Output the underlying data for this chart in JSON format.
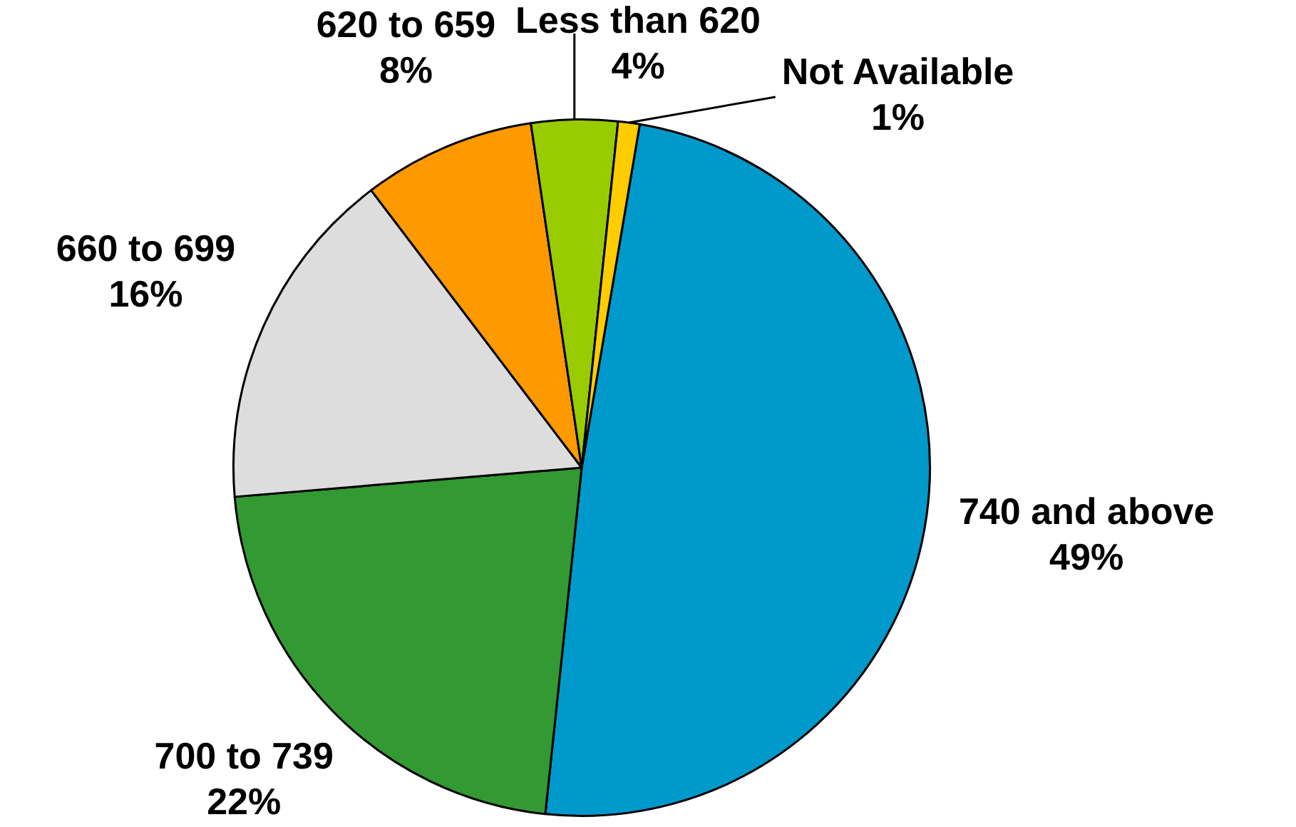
{
  "chart_data": {
    "type": "pie",
    "categories": [
      "740 and above",
      "700 to 739",
      "660 to 699",
      "620 to 659",
      "Less than 620",
      "Not Available"
    ],
    "values": [
      49,
      22,
      16,
      8,
      4,
      1
    ],
    "colors": [
      "#0099cc",
      "#339933",
      "#dddddd",
      "#ff9900",
      "#99cc00",
      "#ffcc00"
    ],
    "value_labels": [
      "49%",
      "22%",
      "16%",
      "8%",
      "4%",
      "1%"
    ],
    "legend": false
  }
}
